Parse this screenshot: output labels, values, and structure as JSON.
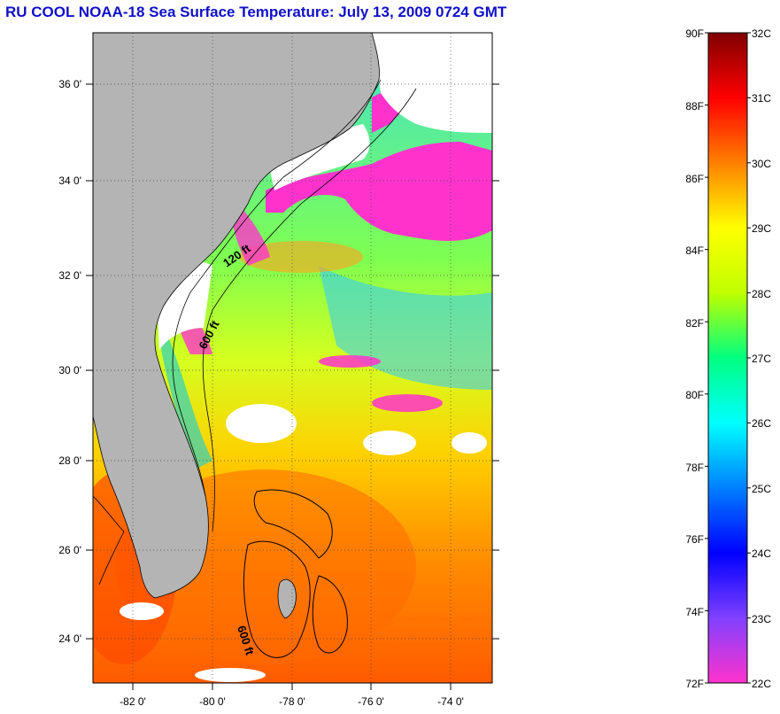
{
  "title": "RU COOL  NOAA-18  Sea Surface Temperature:  July 13, 2009 0724 GMT",
  "map": {
    "lat_labels": [
      "36 0'",
      "34 0'",
      "32 0'",
      "30 0'",
      "28 0'",
      "26 0'",
      "24 0'"
    ],
    "lon_labels": [
      "-82 0'",
      "-80 0'",
      "-78 0'",
      "-76 0'",
      "-74 0'"
    ],
    "contour_labels": [
      "120 ft",
      "600 ft",
      "600 ft"
    ],
    "colors": {
      "land": "#b4b4b4",
      "cloud": "#ffffff",
      "cold": "#ff33cc",
      "warm": "#ff5000"
    }
  },
  "colorbar": {
    "fahrenheit": [
      "90F",
      "88F",
      "86F",
      "84F",
      "82F",
      "80F",
      "78F",
      "76F",
      "74F",
      "72F"
    ],
    "celsius": [
      "32C",
      "31C",
      "30C",
      "29C",
      "28C",
      "27C",
      "26C",
      "25C",
      "24C",
      "23C",
      "22C"
    ],
    "gradient_stops": [
      "#ff33cc",
      "#8040ff",
      "#0000ff",
      "#0080ff",
      "#00ffff",
      "#00ff80",
      "#c0ff00",
      "#ffff00",
      "#ff8000",
      "#ff0000",
      "#800000"
    ]
  }
}
